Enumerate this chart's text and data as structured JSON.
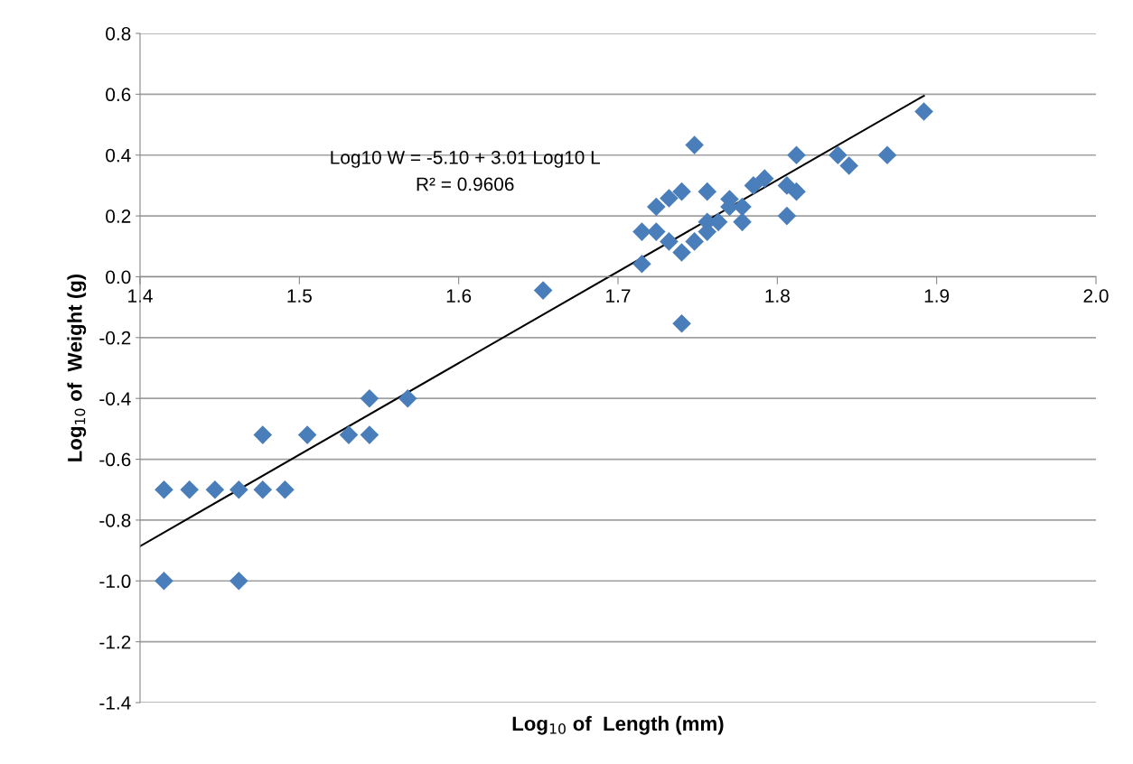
{
  "chart_data": {
    "type": "scatter",
    "xlabel": "Log$_{10}$ of  Length (mm)",
    "ylabel": "Log$_{10}$ of  Weight (g)",
    "annotations": [
      "Log10 W = -5.10 + 3.01 Log10 L",
      "R² = 0.9606"
    ],
    "series": [
      {
        "color": "#4a7ebb",
        "marker": "diamond",
        "x": [
          1.415,
          1.462,
          1.415,
          1.431,
          1.447,
          1.462,
          1.477,
          1.491,
          1.477,
          1.505,
          1.531,
          1.544,
          1.544,
          1.568,
          1.653,
          1.715,
          1.715,
          1.724,
          1.724,
          1.732,
          1.732,
          1.74,
          1.74,
          1.748,
          1.748,
          1.756,
          1.756,
          1.756,
          1.763,
          1.77,
          1.77,
          1.778,
          1.778,
          1.785,
          1.792,
          1.806,
          1.806,
          1.812,
          1.812,
          1.838,
          1.845,
          1.869,
          1.892,
          1.74
        ],
        "values": [
          -1.0,
          -1.0,
          -0.7,
          -0.7,
          -0.7,
          -0.7,
          -0.7,
          -0.7,
          -0.52,
          -0.52,
          -0.52,
          -0.52,
          -0.4,
          -0.4,
          -0.045,
          0.042,
          0.148,
          0.148,
          0.23,
          0.258,
          0.116,
          0.08,
          0.28,
          0.433,
          0.116,
          0.28,
          0.18,
          0.148,
          0.18,
          0.255,
          0.23,
          0.18,
          0.23,
          0.3,
          0.323,
          0.3,
          0.2,
          0.28,
          0.4,
          0.4,
          0.365,
          0.4,
          0.543,
          -0.154
        ]
      },
      {
        "type": "line",
        "color": "#000000",
        "marker": "none",
        "x": [
          1.4,
          1.892
        ],
        "values": [
          -0.886,
          0.595
        ]
      }
    ],
    "xlim": [
      1.4,
      2.0
    ],
    "xticks": [
      1.4,
      1.5,
      1.6,
      1.7,
      1.8,
      1.9,
      {
        "value": 2.0,
        "label": "2.0"
      }
    ],
    "ylim": [
      -1.4,
      0.8
    ],
    "yticks": [
      0.8,
      0.6,
      0.4,
      0.2,
      {
        "value": 0.0,
        "label": "0.0"
      },
      -0.2,
      -0.4,
      -0.6,
      -0.8,
      {
        "value": -1.0,
        "label": "-1.0"
      },
      -1.2,
      -1.4
    ],
    "grid": "y"
  }
}
